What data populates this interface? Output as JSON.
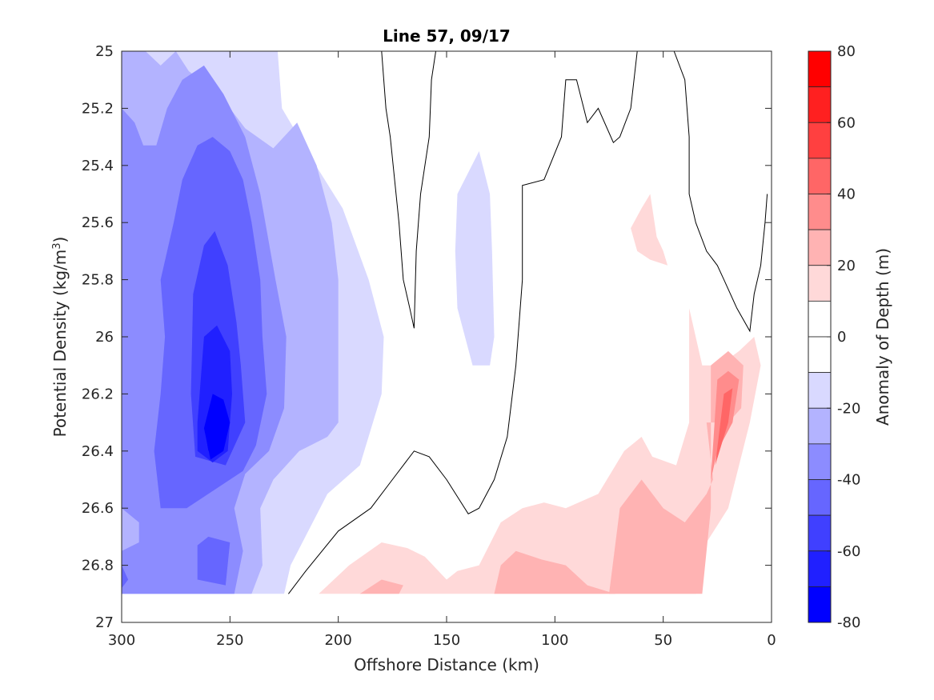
{
  "chart_data": {
    "type": "filled-contour",
    "title": "Line 57, 09/17",
    "xlabel": "Offshore Distance (km)",
    "ylabel_main": "Potential Density (kg/m",
    "ylabel_sup": "3",
    "ylabel_end": ")",
    "xlim": [
      300,
      0
    ],
    "x_reversed": true,
    "ylim": [
      25,
      27
    ],
    "y_reversed": true,
    "x_ticks": [
      300,
      250,
      200,
      150,
      100,
      50,
      0
    ],
    "y_ticks": [
      25,
      25.2,
      25.4,
      25.6,
      25.8,
      26,
      26.2,
      26.4,
      26.6,
      26.8,
      27
    ],
    "colorbar": {
      "label": "Anomaly of Depth (m)",
      "range": [
        -80,
        80
      ],
      "ticks": [
        80,
        60,
        40,
        20,
        0,
        -20,
        -40,
        -60,
        -80
      ],
      "bands": [
        {
          "from": 70,
          "to": 80,
          "color": "#ff0000"
        },
        {
          "from": 60,
          "to": 70,
          "color": "#ff2020"
        },
        {
          "from": 50,
          "to": 60,
          "color": "#ff4040"
        },
        {
          "from": 40,
          "to": 50,
          "color": "#ff6666"
        },
        {
          "from": 30,
          "to": 40,
          "color": "#ff8c8c"
        },
        {
          "from": 20,
          "to": 30,
          "color": "#ffb3b3"
        },
        {
          "from": 10,
          "to": 20,
          "color": "#ffd9d9"
        },
        {
          "from": 0,
          "to": 10,
          "color": "#ffffff"
        },
        {
          "from": -10,
          "to": 0,
          "color": "#ffffff"
        },
        {
          "from": -20,
          "to": -10,
          "color": "#d9d9ff"
        },
        {
          "from": -30,
          "to": -20,
          "color": "#b3b3ff"
        },
        {
          "from": -40,
          "to": -30,
          "color": "#8c8cff"
        },
        {
          "from": -50,
          "to": -40,
          "color": "#6666ff"
        },
        {
          "from": -60,
          "to": -50,
          "color": "#4040ff"
        },
        {
          "from": -70,
          "to": -60,
          "color": "#2020ff"
        },
        {
          "from": -80,
          "to": -70,
          "color": "#0000ff"
        }
      ]
    },
    "regions": [
      {
        "level": -10,
        "color": "#d9d9ff",
        "points": [
          [
            300,
            25
          ],
          [
            228,
            25
          ],
          [
            226,
            25.2
          ],
          [
            212,
            25.38
          ],
          [
            198,
            25.55
          ],
          [
            186,
            25.8
          ],
          [
            179,
            26.0
          ],
          [
            180,
            26.2
          ],
          [
            190,
            26.45
          ],
          [
            205,
            26.55
          ],
          [
            222,
            26.8
          ],
          [
            225,
            26.9
          ],
          [
            300,
            26.9
          ]
        ]
      },
      {
        "level": -20,
        "color": "#b3b3ff",
        "points": [
          [
            300,
            25
          ],
          [
            289,
            25
          ],
          [
            282,
            25.05
          ],
          [
            275,
            25.0
          ],
          [
            269,
            25.07
          ],
          [
            255,
            25.15
          ],
          [
            243,
            25.27
          ],
          [
            230,
            25.34
          ],
          [
            219,
            25.25
          ],
          [
            210,
            25.4
          ],
          [
            203,
            25.6
          ],
          [
            200,
            25.8
          ],
          [
            200,
            26.0
          ],
          [
            200,
            26.3
          ],
          [
            205,
            26.35
          ],
          [
            218,
            26.4
          ],
          [
            230,
            26.5
          ],
          [
            236,
            26.6
          ],
          [
            235,
            26.8
          ],
          [
            240,
            26.9
          ],
          [
            300,
            26.9
          ]
        ]
      },
      {
        "level": -30,
        "color": "#8c8cff",
        "points": [
          [
            300,
            25.2
          ],
          [
            294,
            25.25
          ],
          [
            290,
            25.33
          ],
          [
            284,
            25.33
          ],
          [
            279,
            25.2
          ],
          [
            272,
            25.1
          ],
          [
            262,
            25.05
          ],
          [
            253,
            25.15
          ],
          [
            243,
            25.3
          ],
          [
            236,
            25.5
          ],
          [
            229,
            25.8
          ],
          [
            224,
            26.0
          ],
          [
            225,
            26.25
          ],
          [
            232,
            26.4
          ],
          [
            243,
            26.48
          ],
          [
            248,
            26.6
          ],
          [
            244,
            26.75
          ],
          [
            248,
            26.9
          ],
          [
            300,
            26.9
          ]
        ]
      },
      {
        "level": -40,
        "color": "#6666ff",
        "points": [
          [
            282,
            25.8
          ],
          [
            276,
            25.6
          ],
          [
            272,
            25.45
          ],
          [
            265,
            25.33
          ],
          [
            258,
            25.3
          ],
          [
            250,
            25.35
          ],
          [
            244,
            25.45
          ],
          [
            240,
            25.6
          ],
          [
            236,
            25.8
          ],
          [
            235,
            26.0
          ],
          [
            233,
            26.2
          ],
          [
            238,
            26.38
          ],
          [
            244,
            26.47
          ],
          [
            256,
            26.53
          ],
          [
            270,
            26.6
          ],
          [
            282,
            26.6
          ],
          [
            285,
            26.4
          ],
          [
            282,
            26.2
          ],
          [
            280,
            26.0
          ]
        ]
      },
      {
        "level": -50,
        "color": "#4040ff",
        "points": [
          [
            268,
            26.2
          ],
          [
            267,
            25.85
          ],
          [
            262,
            25.68
          ],
          [
            257,
            25.63
          ],
          [
            251,
            25.75
          ],
          [
            247,
            25.95
          ],
          [
            245,
            26.1
          ],
          [
            243,
            26.3
          ],
          [
            252,
            26.45
          ],
          [
            266,
            26.42
          ]
        ]
      },
      {
        "level": -60,
        "color": "#2020ff",
        "points": [
          [
            265,
            26.3
          ],
          [
            262,
            26.0
          ],
          [
            256,
            25.96
          ],
          [
            250,
            26.05
          ],
          [
            249,
            26.2
          ],
          [
            251,
            26.4
          ],
          [
            258,
            26.44
          ],
          [
            265,
            26.4
          ]
        ]
      },
      {
        "level": -70,
        "color": "#0000ff",
        "points": [
          [
            262,
            26.32
          ],
          [
            258,
            26.2
          ],
          [
            253,
            26.22
          ],
          [
            250,
            26.3
          ],
          [
            253,
            26.4
          ],
          [
            259,
            26.43
          ]
        ]
      },
      {
        "level": -80,
        "color": "#0000ff",
        "points": [
          [
            261,
            26.35
          ],
          [
            259,
            26.38
          ],
          [
            260,
            26.4
          ]
        ]
      },
      {
        "level": -40,
        "color": "#6666ff",
        "points": [
          [
            260,
            26.7
          ],
          [
            265,
            26.73
          ],
          [
            265,
            26.85
          ],
          [
            252,
            26.87
          ],
          [
            250,
            26.72
          ]
        ]
      },
      {
        "level": -20,
        "color": "#b3b3ff",
        "points": [
          [
            300,
            26.6
          ],
          [
            292,
            26.65
          ],
          [
            292,
            26.72
          ],
          [
            300,
            26.75
          ]
        ]
      },
      {
        "level": -40,
        "color": "#6666ff",
        "points": [
          [
            300,
            26.8
          ],
          [
            297,
            26.85
          ],
          [
            300,
            26.88
          ]
        ]
      },
      {
        "level": -10,
        "color": "#d9d9ff",
        "points": [
          [
            145,
            25.5
          ],
          [
            135,
            25.35
          ],
          [
            130,
            25.5
          ],
          [
            129,
            25.7
          ],
          [
            128,
            26.0
          ],
          [
            130,
            26.1
          ],
          [
            138,
            26.1
          ],
          [
            145,
            25.9
          ],
          [
            146,
            25.7
          ]
        ]
      },
      {
        "level": 10,
        "color": "#ffd9d9",
        "points": [
          [
            209,
            26.9
          ],
          [
            195,
            26.8
          ],
          [
            180,
            26.72
          ],
          [
            168,
            26.74
          ],
          [
            160,
            26.77
          ],
          [
            150,
            26.85
          ],
          [
            145,
            26.82
          ],
          [
            135,
            26.8
          ],
          [
            125,
            26.65
          ],
          [
            115,
            26.6
          ],
          [
            105,
            26.58
          ],
          [
            95,
            26.6
          ],
          [
            80,
            26.55
          ],
          [
            68,
            26.4
          ],
          [
            60,
            26.35
          ],
          [
            55,
            26.42
          ],
          [
            44,
            26.45
          ],
          [
            38,
            26.3
          ],
          [
            38,
            25.9
          ],
          [
            32,
            26.1
          ],
          [
            24,
            26.1
          ],
          [
            15,
            26.05
          ],
          [
            8,
            26.0
          ],
          [
            5,
            26.1
          ],
          [
            10,
            26.3
          ],
          [
            20,
            26.6
          ],
          [
            30,
            26.72
          ],
          [
            35,
            26.9
          ]
        ]
      },
      {
        "level": 20,
        "color": "#ffb3b3",
        "points": [
          [
            190,
            26.9
          ],
          [
            180,
            26.85
          ],
          [
            170,
            26.87
          ],
          [
            172,
            26.9
          ]
        ]
      },
      {
        "level": 20,
        "color": "#ffb3b3",
        "points": [
          [
            128,
            26.9
          ],
          [
            125,
            26.8
          ],
          [
            118,
            26.75
          ],
          [
            106,
            26.78
          ],
          [
            95,
            26.8
          ],
          [
            85,
            26.87
          ],
          [
            72,
            26.9
          ]
        ]
      },
      {
        "level": 20,
        "color": "#ffb3b3",
        "points": [
          [
            75,
            26.9
          ],
          [
            70,
            26.6
          ],
          [
            60,
            26.5
          ],
          [
            50,
            26.6
          ],
          [
            40,
            26.65
          ],
          [
            30,
            26.55
          ],
          [
            27,
            26.5
          ],
          [
            30,
            26.3
          ],
          [
            20,
            26.3
          ],
          [
            14,
            26.25
          ],
          [
            13,
            26.1
          ],
          [
            20,
            26.05
          ],
          [
            28,
            26.1
          ],
          [
            28,
            26.6
          ],
          [
            32,
            26.9
          ]
        ]
      },
      {
        "level": 30,
        "color": "#ff8c8c",
        "points": [
          [
            25,
            26.15
          ],
          [
            20,
            26.12
          ],
          [
            15,
            26.15
          ],
          [
            18,
            26.3
          ],
          [
            25,
            26.4
          ],
          [
            28,
            26.5
          ]
        ]
      },
      {
        "level": 40,
        "color": "#ff6666",
        "points": [
          [
            22,
            26.2
          ],
          [
            18,
            26.18
          ],
          [
            20,
            26.3
          ],
          [
            26,
            26.45
          ]
        ]
      },
      {
        "level": 10,
        "color": "#ffd9d9",
        "points": [
          [
            65,
            25.62
          ],
          [
            60,
            25.55
          ],
          [
            56,
            25.5
          ],
          [
            53,
            25.65
          ],
          [
            50,
            25.7
          ],
          [
            48,
            25.75
          ],
          [
            56,
            25.73
          ],
          [
            62,
            25.7
          ]
        ]
      }
    ],
    "contour_zero": [
      [
        [
          180,
          25
        ],
        [
          178,
          25.2
        ],
        [
          176,
          25.3
        ],
        [
          172,
          25.6
        ],
        [
          170,
          25.8
        ],
        [
          167,
          25.9
        ],
        [
          165,
          25.97
        ],
        [
          164,
          25.7
        ],
        [
          162,
          25.5
        ],
        [
          158,
          25.3
        ],
        [
          157,
          25.1
        ],
        [
          155,
          25
        ]
      ],
      [
        [
          223,
          26.9
        ],
        [
          215,
          26.82
        ],
        [
          200,
          26.68
        ],
        [
          185,
          26.6
        ],
        [
          175,
          26.5
        ],
        [
          165,
          26.4
        ],
        [
          158,
          26.42
        ],
        [
          150,
          26.5
        ],
        [
          140,
          26.62
        ],
        [
          135,
          26.6
        ],
        [
          128,
          26.5
        ],
        [
          122,
          26.35
        ],
        [
          118,
          26.1
        ],
        [
          115,
          25.8
        ],
        [
          115,
          25.47
        ],
        [
          105,
          25.45
        ],
        [
          97,
          25.3
        ],
        [
          95,
          25.1
        ],
        [
          90,
          25.1
        ],
        [
          85,
          25.25
        ],
        [
          80,
          25.2
        ],
        [
          73,
          25.32
        ],
        [
          70,
          25.3
        ],
        [
          65,
          25.2
        ],
        [
          62,
          25.0
        ]
      ],
      [
        [
          45,
          25
        ],
        [
          40,
          25.1
        ],
        [
          38,
          25.3
        ],
        [
          38,
          25.5
        ],
        [
          35,
          25.6
        ],
        [
          30,
          25.7
        ],
        [
          25,
          25.75
        ],
        [
          22,
          25.8
        ],
        [
          16,
          25.9
        ],
        [
          10,
          25.98
        ],
        [
          8,
          25.85
        ],
        [
          5,
          25.75
        ],
        [
          3,
          25.6
        ],
        [
          2,
          25.5
        ]
      ]
    ]
  }
}
